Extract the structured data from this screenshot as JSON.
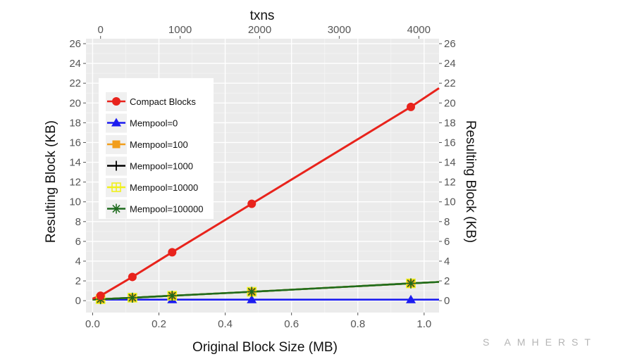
{
  "chart_data": {
    "type": "line",
    "xlabel": "Original Block Size (MB)",
    "x2label": "txns",
    "ylabel": "Resulting Block (KB)",
    "y2label": "Resulting Block (KB)",
    "xlim": [
      -0.02,
      1.045
    ],
    "ylim": [
      -1.2,
      26.5
    ],
    "x_ticks": [
      0.0,
      0.2,
      0.4,
      0.6,
      0.8,
      1.0
    ],
    "x_tick_labels": [
      "0.0",
      "0.2",
      "0.4",
      "0.6",
      "0.8",
      "1.0"
    ],
    "x2_ticks": [
      0,
      1000,
      2000,
      3000,
      4000
    ],
    "x2_tick_labels": [
      "0",
      "1000",
      "2000",
      "3000",
      "4000"
    ],
    "y_ticks": [
      0,
      2,
      4,
      6,
      8,
      10,
      12,
      14,
      16,
      18,
      20,
      22,
      24,
      26
    ],
    "grid": true,
    "legend_position": "top-left",
    "series": [
      {
        "name": "Compact Blocks",
        "color": "#e8231c",
        "marker": "circle",
        "x": [
          0.0,
          0.024,
          0.12,
          0.24,
          0.48,
          0.96,
          1.045
        ],
        "y": [
          0.2,
          0.5,
          2.4,
          4.9,
          9.8,
          19.6,
          21.5
        ],
        "marker_x": [
          0.024,
          0.12,
          0.24,
          0.48,
          0.96
        ]
      },
      {
        "name": "Mempool=0",
        "color": "#1c1cf0",
        "marker": "triangle",
        "x": [
          0.0,
          0.024,
          0.12,
          0.24,
          0.48,
          0.96,
          1.045
        ],
        "y": [
          0.1,
          0.1,
          0.1,
          0.1,
          0.1,
          0.1,
          0.1
        ],
        "marker_x": [
          0.24,
          0.48,
          0.96
        ]
      },
      {
        "name": "Mempool=100",
        "color": "#f29e1c",
        "marker": "square",
        "x": [
          0.0,
          0.024,
          0.12,
          0.24,
          0.48,
          0.96,
          1.045
        ],
        "y": [
          0.1,
          0.15,
          0.3,
          0.5,
          0.9,
          1.75,
          1.9
        ],
        "marker_x": [
          0.024,
          0.12,
          0.24,
          0.48,
          0.96
        ]
      },
      {
        "name": "Mempool=1000",
        "color": "#000000",
        "marker": "plus",
        "x": [
          0.0,
          0.024,
          0.12,
          0.24,
          0.48,
          0.96,
          1.045
        ],
        "y": [
          0.1,
          0.15,
          0.3,
          0.5,
          0.9,
          1.75,
          1.9
        ],
        "marker_x": [
          0.024,
          0.12,
          0.24,
          0.48,
          0.96
        ]
      },
      {
        "name": "Mempool=10000",
        "color": "#f0f01c",
        "marker": "crossbox",
        "x": [
          0.0,
          0.024,
          0.12,
          0.24,
          0.48,
          0.96,
          1.045
        ],
        "y": [
          0.1,
          0.15,
          0.3,
          0.5,
          0.9,
          1.75,
          1.9
        ],
        "marker_x": [
          0.024,
          0.12,
          0.24,
          0.48,
          0.96
        ]
      },
      {
        "name": "Mempool=100000",
        "color": "#1e6b1e",
        "marker": "asterisk",
        "x": [
          0.0,
          0.024,
          0.12,
          0.24,
          0.48,
          0.96,
          1.045
        ],
        "y": [
          0.1,
          0.15,
          0.3,
          0.5,
          0.9,
          1.75,
          1.9
        ],
        "marker_x": [
          0.024,
          0.12,
          0.24,
          0.48,
          0.96
        ]
      }
    ]
  },
  "watermark": "S AMHERST"
}
